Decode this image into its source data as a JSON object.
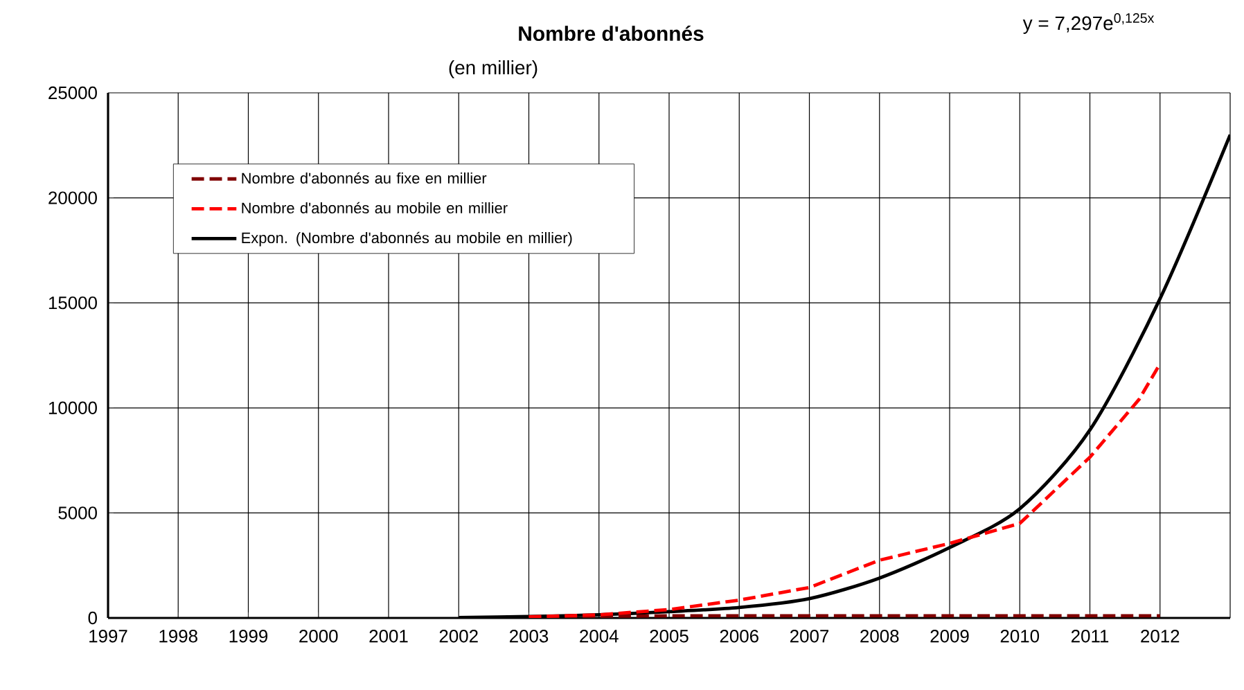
{
  "chart_data": {
    "type": "line",
    "title": "Nombre d'abonnés",
    "subtitle": "(en millier)",
    "annotations": [
      "y = 7,297e$^{0,125x}$"
    ],
    "xlim": [
      1997,
      2013
    ],
    "xticks": [
      1997,
      1998,
      1999,
      2000,
      2001,
      2002,
      2003,
      2004,
      2005,
      2006,
      2007,
      2008,
      2009,
      2010,
      2011,
      2012,
      {
        "value": 2013,
        "label": null
      }
    ],
    "ylim": [
      0,
      25000
    ],
    "yticks": [
      0,
      5000,
      10000,
      15000,
      20000,
      25000
    ],
    "grid": true,
    "legend": "top left",
    "marker": "none",
    "series": [
      {
        "name": "Nombre d'abonnés au fixe en millier",
        "color": "#800000",
        "line_style": "dashed",
        "x": [
          2003,
          2004,
          2005,
          2006,
          2007,
          2008,
          2009,
          2010,
          2011,
          2012
        ],
        "values": [
          50,
          80,
          100,
          100,
          100,
          100,
          100,
          100,
          100,
          100
        ]
      },
      {
        "name": "Nombre d'abonnés au mobile en millier",
        "color": "#ff0000",
        "line_style": "dashed",
        "x": [
          2003,
          2004,
          2005,
          2006,
          2007,
          2008,
          2009,
          2010,
          2011,
          2011.7,
          2012
        ],
        "values": [
          50,
          150,
          400,
          850,
          1450,
          2750,
          3550,
          4500,
          7650,
          10400,
          12100
        ]
      },
      {
        "name": "Expon. (Nombre d'abonnés au mobile en millier)",
        "color": "#000000",
        "line_style": "solid",
        "x": [
          2002,
          2003,
          2004,
          2005,
          2006,
          2007,
          2008,
          2009,
          2010,
          2011,
          2012,
          2013
        ],
        "values": [
          20,
          70,
          150,
          300,
          500,
          920,
          1900,
          3350,
          5200,
          8950,
          15200,
          23000
        ]
      }
    ]
  }
}
